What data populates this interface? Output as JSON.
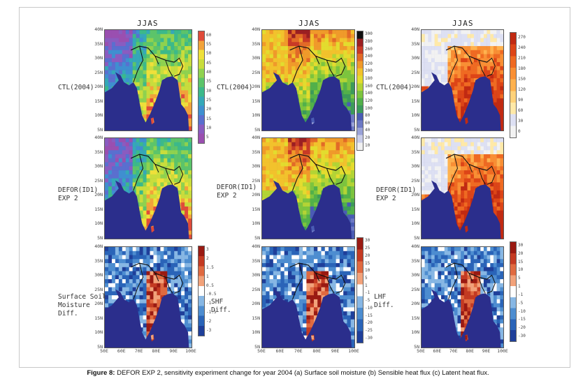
{
  "season_label": "JJAS",
  "row_labels": {
    "ctl": "CTL(2004)",
    "defor": "DEFOR(ID1)\nEXP 2",
    "diff_soil": "Surface Soil\nMoisture\nDiff.",
    "diff_shf": "SHF\nDiff.",
    "diff_lhf": "LHF\nDiff."
  },
  "latitudes": [
    "40N",
    "35N",
    "30N",
    "25N",
    "20N",
    "15N",
    "10N",
    "5N"
  ],
  "longitudes": [
    "50E",
    "60E",
    "70E",
    "80E",
    "90E",
    "100E"
  ],
  "colorbars": {
    "soil": [
      "60",
      "55",
      "50",
      "45",
      "40",
      "35",
      "30",
      "25",
      "20",
      "15",
      "10",
      "5"
    ],
    "shf": [
      "300",
      "280",
      "260",
      "240",
      "220",
      "200",
      "180",
      "160",
      "140",
      "120",
      "100",
      "80",
      "60",
      "40",
      "20",
      "10"
    ],
    "lhf": [
      "270",
      "240",
      "210",
      "180",
      "150",
      "120",
      "90",
      "60",
      "30",
      "0"
    ],
    "diff_soil": [
      "3",
      "2",
      "1.5",
      "1",
      "0.5",
      "-0.5",
      "-1",
      "-1.5",
      "-2",
      "-3"
    ],
    "diff_shf": [
      "30",
      "25",
      "20",
      "15",
      "10",
      "5",
      "1",
      "-1",
      "-5",
      "-10",
      "-15",
      "-20",
      "-25",
      "-30"
    ],
    "diff_lhf": [
      "30",
      "20",
      "15",
      "10",
      "5",
      "1",
      "-1",
      "-5",
      "-10",
      "-15",
      "-20",
      "-30"
    ]
  },
  "caption": {
    "bold": "Figure 8:",
    "text": " DEFOR EXP 2, sensitivity experiment change for year 2004 (a) Surface soil moisture (b) Sensible heat flux (c) Latent heat flux."
  },
  "colors": {
    "ocean": "#2b2e8c",
    "soil_palette": [
      "#9a4fb0",
      "#8a5cc0",
      "#5a6fcf",
      "#3f8fd0",
      "#35a8b8",
      "#3cb98a",
      "#5cc46a",
      "#8fd24f",
      "#c9dd3c",
      "#efe03a",
      "#f2a33a",
      "#e04b3a"
    ],
    "shf_palette": [
      "#f0f0f0",
      "#c9cde8",
      "#9aa2d8",
      "#6c78c4",
      "#4a5cb4",
      "#3c9a5a",
      "#52b04a",
      "#7cc43e",
      "#b3d435",
      "#e3dc2e",
      "#f2c22c",
      "#f09a2a",
      "#e26a27",
      "#c83a26",
      "#9b1f22",
      "#111111"
    ],
    "lhf_palette": [
      "#f2f2f2",
      "#dde0f3",
      "#ffe9a8",
      "#ffd27a",
      "#ffb24f",
      "#f98f34",
      "#ef6a22",
      "#dd4517",
      "#c12a12"
    ],
    "diff_palette": [
      "#1f3f9a",
      "#2a64b8",
      "#4d8dd0",
      "#87b7e4",
      "#ffffff",
      "#f2a27a",
      "#e06a40",
      "#c43a22",
      "#9a1a12"
    ]
  }
}
